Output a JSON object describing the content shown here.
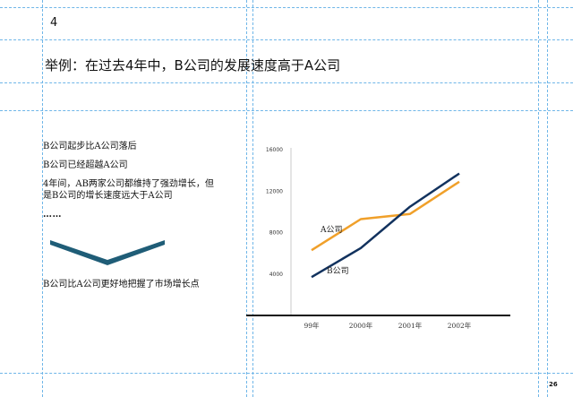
{
  "slide_number": "4",
  "title": "举例：在过去4年中，B公司的发展速度高于A公司",
  "bullets": [
    "B公司起步比A公司落后",
    "B公司已经超越A公司",
    "4年间，AB两家公司都维持了强劲增长，但是B公司的增长速度远大于A公司",
    "……"
  ],
  "conclusion": "B公司比A公司更好地把握了市场增长点",
  "page_number": "26",
  "colors": {
    "company_a": "#f0a02a",
    "company_b": "#12325e",
    "chevron": "#1f5d77",
    "guides": "#6fb6e8"
  },
  "chart_data": {
    "type": "line",
    "categories": [
      "99年",
      "2000年",
      "2001年",
      "2002年"
    ],
    "y_ticks": [
      4000,
      8000,
      12000,
      16000
    ],
    "ylim": [
      0,
      16000
    ],
    "series": [
      {
        "name": "A公司",
        "values": [
          6300,
          9300,
          9800,
          12900
        ]
      },
      {
        "name": "B公司",
        "values": [
          3700,
          6500,
          10500,
          13700
        ]
      }
    ]
  }
}
